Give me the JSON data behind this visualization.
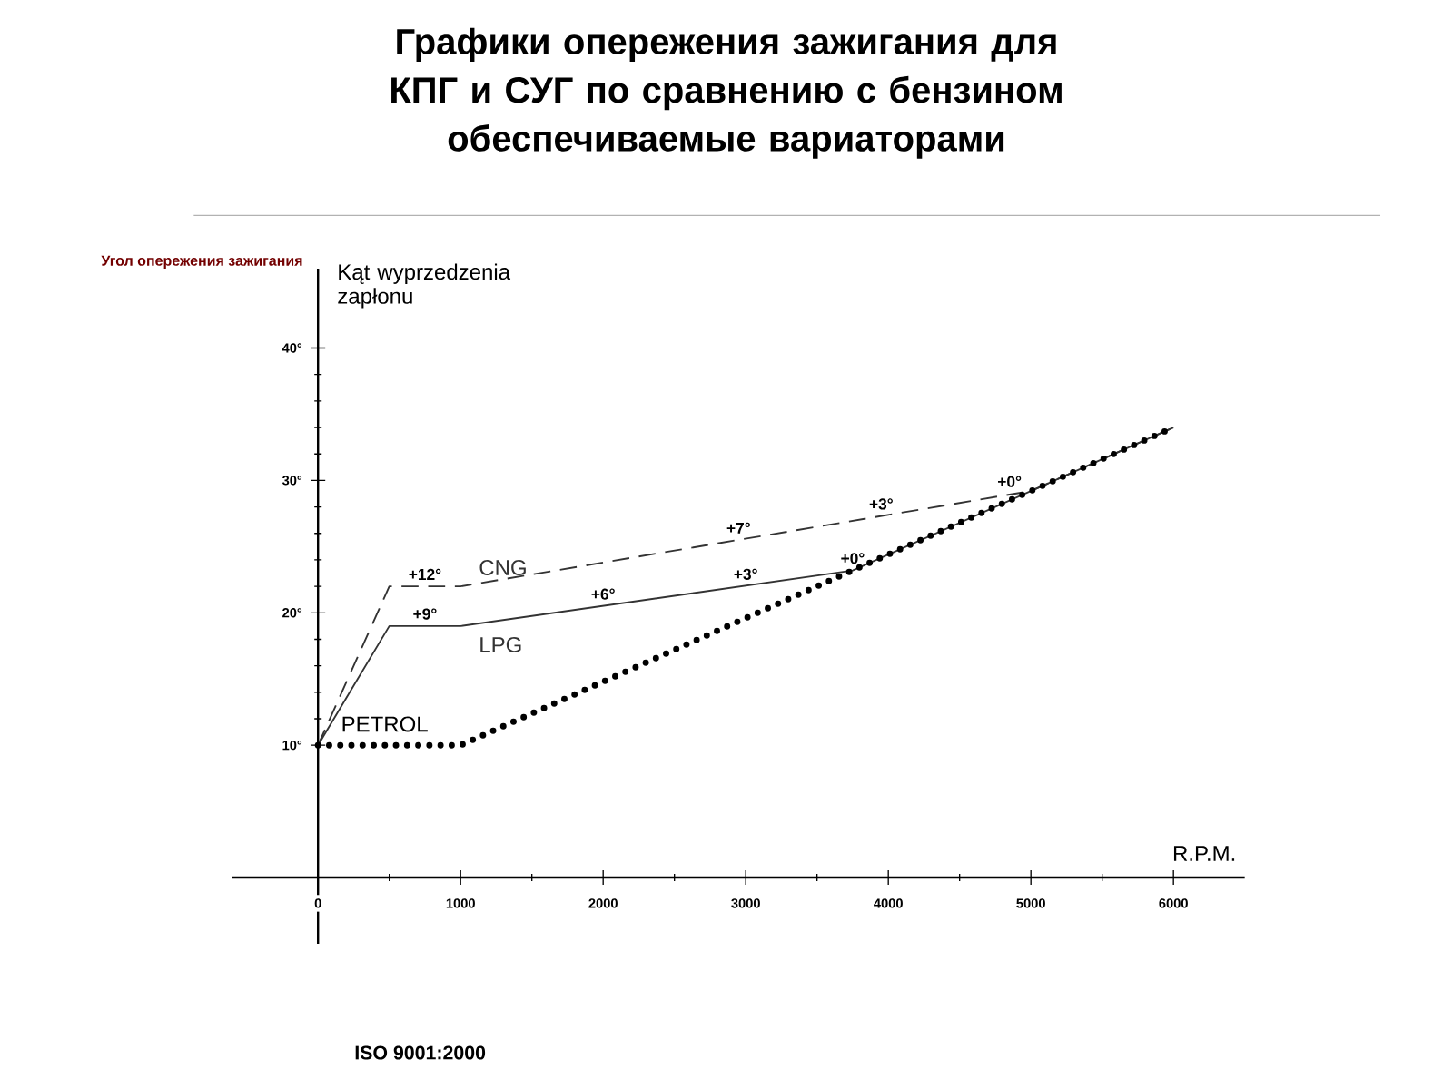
{
  "chart_data": {
    "type": "line",
    "title": "Графики опережения зажигания для КПГ и СУГ по сравнению с бензином обеспечиваемые вариаторами",
    "xlabel": "R.P.M.",
    "ylabel": "Kąt wyprzedzenia zapłonu",
    "xlim": [
      -600,
      6500
    ],
    "ylim": [
      -5,
      46
    ],
    "xticks": [
      {
        "value": 0,
        "label": "0"
      },
      1000,
      2000,
      3000,
      4000,
      5000,
      6000
    ],
    "yticks": [
      {
        "value": 10,
        "label": "10°"
      },
      {
        "value": 20,
        "label": "20°"
      },
      {
        "value": 30,
        "label": "30°"
      },
      {
        "value": 40,
        "label": "40°"
      }
    ],
    "grid": false,
    "legend": false,
    "marker": "none",
    "series": [
      {
        "name": "CNG",
        "color": "#333333",
        "line_style": "dashed",
        "x": [
          0,
          500,
          1000,
          5000,
          6000
        ],
        "values": [
          10,
          22,
          22,
          29.2,
          34
        ]
      },
      {
        "name": "LPG",
        "color": "#333333",
        "line_style": "solid",
        "x": [
          0,
          500,
          1000,
          3750,
          6000
        ],
        "values": [
          10,
          19,
          19,
          23.2,
          34
        ]
      },
      {
        "name": "PETROL",
        "color": "#000000",
        "line_style": "dotted",
        "x": [
          0,
          1000,
          6000
        ],
        "values": [
          10,
          10,
          34
        ]
      }
    ],
    "annotations": [
      "Угол опережения зажигания",
      "ISO 9001:2000",
      {
        "text": "+12°",
        "x": 750,
        "y": 22
      },
      {
        "text": "+9°",
        "x": 750,
        "y": 19
      },
      {
        "text": "+6°",
        "x": 2000,
        "y": 20.5
      },
      {
        "text": "+3°",
        "x": 3000,
        "y": 22
      },
      {
        "text": "+0°",
        "x": 3750,
        "y": 23.2
      },
      {
        "text": "+7°",
        "x": 2950,
        "y": 25.5
      },
      {
        "text": "+3°",
        "x": 3950,
        "y": 27.3
      },
      {
        "text": "+0°",
        "x": 4850,
        "y": 29
      }
    ]
  }
}
